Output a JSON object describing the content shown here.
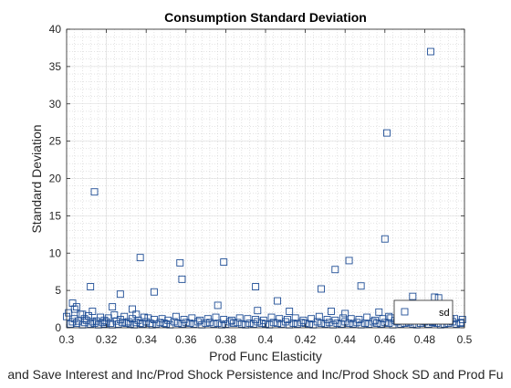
{
  "chart_data": {
    "type": "scatter",
    "title": "Consumption Standard Deviation",
    "xlabel": "Prod Func Elasticity",
    "ylabel": "Standard Deviation",
    "bottom_text": "and Save Interest and Inc/Prod Shock Persistence and Inc/Prod Shock SD and Prod Fu",
    "xlim": [
      0.3,
      0.5
    ],
    "ylim": [
      0,
      40
    ],
    "xticks": [
      "0.3",
      "0.32",
      "0.34",
      "0.36",
      "0.38",
      "0.4",
      "0.42",
      "0.44",
      "0.46",
      "0.48",
      "0.5"
    ],
    "yticks": [
      "0",
      "5",
      "10",
      "15",
      "20",
      "25",
      "30",
      "35",
      "40"
    ],
    "grid": true,
    "minor_grid": true,
    "legend": {
      "location": "bottom-right",
      "entries": [
        "sd"
      ]
    },
    "marker_color": "#1f4e96",
    "series": [
      {
        "name": "sd",
        "marker": "square",
        "x": [
          0.302,
          0.303,
          0.304,
          0.305,
          0.306,
          0.308,
          0.309,
          0.31,
          0.312,
          0.313,
          0.314,
          0.315,
          0.316,
          0.318,
          0.319,
          0.32,
          0.322,
          0.323,
          0.325,
          0.326,
          0.328,
          0.33,
          0.331,
          0.332,
          0.334,
          0.335,
          0.337,
          0.338,
          0.34,
          0.342,
          0.343,
          0.345,
          0.347,
          0.349,
          0.35,
          0.352,
          0.354,
          0.356,
          0.358,
          0.36,
          0.362,
          0.364,
          0.366,
          0.368,
          0.37,
          0.372,
          0.374,
          0.376,
          0.378,
          0.38,
          0.382,
          0.384,
          0.386,
          0.388,
          0.39,
          0.392,
          0.394,
          0.396,
          0.398,
          0.4,
          0.402,
          0.404,
          0.406,
          0.408,
          0.41,
          0.412,
          0.414,
          0.416,
          0.418,
          0.42,
          0.422,
          0.424,
          0.426,
          0.428,
          0.43,
          0.432,
          0.434,
          0.436,
          0.438,
          0.44,
          0.442,
          0.444,
          0.446,
          0.448,
          0.45,
          0.452,
          0.454,
          0.456,
          0.458,
          0.46,
          0.462,
          0.464,
          0.466,
          0.468,
          0.47,
          0.472,
          0.474,
          0.476,
          0.478,
          0.48,
          0.482,
          0.484,
          0.486,
          0.488,
          0.49,
          0.492,
          0.494,
          0.496,
          0.498,
          0.3,
          0.301,
          0.304,
          0.307,
          0.309,
          0.311,
          0.313,
          0.317,
          0.319,
          0.321,
          0.324,
          0.327,
          0.329,
          0.333,
          0.336,
          0.339,
          0.341,
          0.344,
          0.348,
          0.351,
          0.355,
          0.359,
          0.363,
          0.367,
          0.371,
          0.375,
          0.379,
          0.383,
          0.387,
          0.391,
          0.395,
          0.399,
          0.403,
          0.407,
          0.411,
          0.415,
          0.419,
          0.423,
          0.427,
          0.431,
          0.435,
          0.439,
          0.443,
          0.447,
          0.451,
          0.455,
          0.459,
          0.463,
          0.467,
          0.471,
          0.475,
          0.479,
          0.483,
          0.487,
          0.491,
          0.495,
          0.499,
          0.303,
          0.305,
          0.308,
          0.312,
          0.314,
          0.323,
          0.327,
          0.333,
          0.335,
          0.337,
          0.344,
          0.357,
          0.358,
          0.376,
          0.379,
          0.395,
          0.396,
          0.406,
          0.412,
          0.428,
          0.433,
          0.435,
          0.442,
          0.44,
          0.448,
          0.457,
          0.46,
          0.461,
          0.462,
          0.474,
          0.476,
          0.479,
          0.481,
          0.483,
          0.485,
          0.487,
          0.489,
          0.491,
          0.493,
          0.498,
          0.465,
          0.469,
          0.472,
          0.478,
          0.481,
          0.484
        ],
        "y": [
          0.5,
          0.8,
          1.2,
          0.6,
          0.9,
          0.4,
          0.7,
          1.0,
          0.5,
          0.8,
          0.6,
          0.9,
          0.4,
          0.7,
          0.5,
          0.8,
          0.6,
          0.4,
          0.9,
          0.5,
          0.7,
          0.6,
          0.8,
          0.5,
          0.4,
          0.7,
          0.6,
          0.5,
          0.8,
          0.6,
          0.4,
          0.5,
          0.7,
          0.6,
          0.5,
          0.4,
          0.8,
          0.6,
          0.5,
          0.7,
          0.6,
          0.5,
          0.8,
          0.4,
          0.6,
          0.7,
          0.5,
          0.6,
          0.4,
          0.5,
          0.8,
          0.6,
          0.7,
          0.5,
          0.4,
          0.6,
          0.5,
          0.8,
          0.6,
          0.5,
          0.4,
          0.7,
          0.6,
          0.5,
          0.8,
          0.4,
          0.6,
          0.5,
          0.7,
          0.6,
          0.5,
          0.4,
          0.8,
          0.6,
          0.5,
          0.7,
          0.4,
          0.6,
          0.5,
          0.8,
          0.6,
          0.5,
          0.7,
          0.4,
          0.6,
          0.5,
          0.8,
          0.6,
          0.5,
          0.7,
          0.6,
          0.4,
          0.8,
          0.5,
          0.6,
          0.7,
          0.5,
          0.4,
          0.6,
          0.8,
          0.5,
          0.7,
          0.6,
          0.4,
          0.5,
          0.6,
          0.8,
          0.5,
          0.7,
          1.5,
          2.0,
          2.5,
          1.8,
          1.2,
          1.6,
          2.2,
          1.4,
          1.0,
          1.3,
          1.7,
          1.1,
          1.5,
          1.2,
          1.0,
          1.4,
          1.3,
          1.1,
          1.2,
          1.0,
          1.5,
          1.1,
          1.3,
          1.0,
          1.2,
          1.4,
          1.1,
          1.0,
          1.3,
          1.2,
          1.1,
          1.0,
          1.4,
          1.2,
          1.1,
          1.3,
          1.0,
          1.2,
          1.5,
          1.1,
          1.0,
          1.3,
          1.2,
          1.1,
          1.4,
          1.0,
          1.2,
          1.3,
          1.1,
          1.0,
          1.2,
          1.4,
          1.1,
          1.3,
          1.0,
          1.2,
          1.1,
          3.3,
          2.8,
          1.8,
          5.5,
          18.2,
          2.8,
          4.5,
          2.5,
          1.8,
          9.4,
          4.8,
          8.7,
          6.5,
          3.0,
          8.8,
          5.5,
          2.3,
          3.6,
          2.2,
          5.2,
          2.2,
          7.8,
          9.0,
          1.9,
          5.6,
          2.1,
          11.9,
          26.1,
          1.5,
          4.2,
          1.3,
          2.7,
          1.6,
          37.0,
          4.1,
          4.0,
          2.0,
          0.9,
          1.2,
          0.6,
          1.0,
          1.1,
          0.9,
          1.3,
          1.0,
          0.8
        ]
      }
    ]
  }
}
